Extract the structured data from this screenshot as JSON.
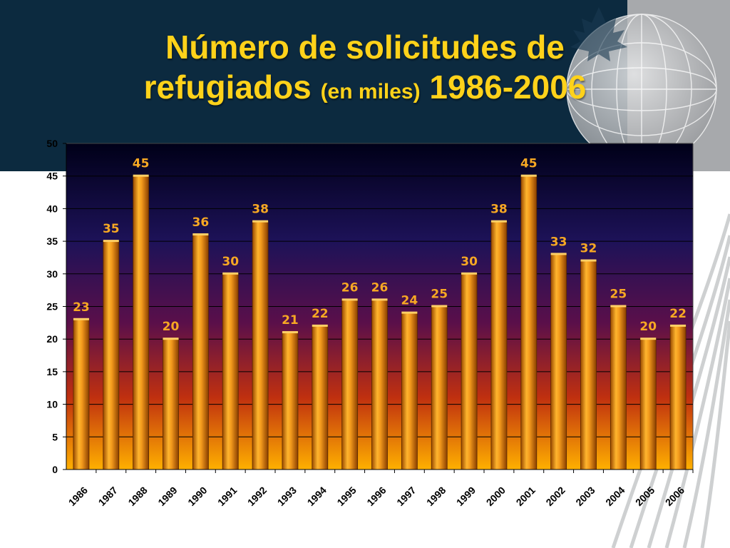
{
  "slide": {
    "title_line1": "Número de solicitudes de",
    "title_line2_main": "refugiados",
    "title_line2_paren": "(en miles)",
    "title_line2_years": "1986-2006"
  },
  "colors": {
    "header_band": "#0c2a3f",
    "header_grey": "#a7a9ac",
    "title": "#ffd21a",
    "bar_orange": "#f29a1a",
    "data_label": "#f7a823",
    "plot_bg_top": "#000018",
    "plot_bg_mid": "#5a0f4a",
    "plot_bg_bottom": "#ffb000"
  },
  "chart_data": {
    "type": "bar",
    "categories": [
      "1986",
      "1987",
      "1988",
      "1989",
      "1990",
      "1991",
      "1992",
      "1993",
      "1994",
      "1995",
      "1996",
      "1997",
      "1998",
      "1999",
      "2000",
      "2001",
      "2002",
      "2003",
      "2004",
      "2005",
      "2006"
    ],
    "values": [
      23,
      35,
      45,
      20,
      36,
      30,
      38,
      21,
      22,
      26,
      26,
      24,
      25,
      30,
      38,
      45,
      33,
      32,
      25,
      20,
      22
    ],
    "ylim": [
      0,
      50
    ],
    "yticks": [
      0,
      5,
      10,
      15,
      20,
      25,
      30,
      35,
      40,
      45,
      50
    ],
    "grid": true,
    "data_labels": true
  }
}
